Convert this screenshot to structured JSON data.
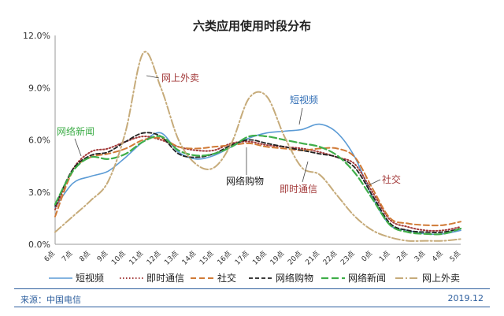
{
  "chart_data": {
    "type": "line",
    "title": "六类应用使用时段分布",
    "categories": [
      "6点",
      "7点",
      "8点",
      "9点",
      "10点",
      "11点",
      "12点",
      "13点",
      "14点",
      "15点",
      "16点",
      "17点",
      "18点",
      "19点",
      "20点",
      "21点",
      "22点",
      "23点",
      "0点",
      "1点",
      "2点",
      "3点",
      "4点",
      "5点"
    ],
    "y_ticks": [
      "0.0%",
      "3.0%",
      "6.0%",
      "9.0%",
      "12.0%"
    ],
    "ylim": [
      0,
      12
    ],
    "grid": false,
    "legend_position": "bottom",
    "series": [
      {
        "name": "短视频",
        "color": "#5b9bd5",
        "dash": "",
        "width": 1.6,
        "values": [
          2.1,
          3.5,
          3.9,
          4.2,
          5.0,
          5.9,
          6.4,
          5.3,
          4.9,
          5.1,
          5.6,
          6.1,
          6.4,
          6.5,
          6.6,
          6.9,
          6.4,
          5.0,
          2.7,
          1.1,
          0.8,
          0.6,
          0.6,
          0.8
        ]
      },
      {
        "name": "即时通信",
        "color": "#a33a3a",
        "dash": "1.5 2.5",
        "width": 2,
        "values": [
          2.0,
          4.3,
          5.3,
          5.5,
          5.9,
          6.2,
          6.0,
          5.6,
          5.4,
          5.4,
          5.8,
          5.9,
          5.7,
          5.6,
          5.5,
          5.3,
          5.0,
          4.6,
          3.0,
          1.4,
          1.0,
          0.8,
          0.8,
          1.0
        ]
      },
      {
        "name": "社交",
        "color": "#d07a36",
        "dash": "7 4",
        "width": 2,
        "values": [
          1.6,
          4.2,
          5.0,
          5.2,
          5.5,
          6.0,
          6.1,
          5.6,
          5.5,
          5.6,
          5.7,
          5.8,
          5.6,
          5.5,
          5.4,
          5.5,
          5.5,
          5.0,
          3.2,
          1.5,
          1.2,
          1.1,
          1.1,
          1.3
        ]
      },
      {
        "name": "网络购物",
        "color": "#222222",
        "dash": "5 3",
        "width": 1.8,
        "values": [
          2.2,
          4.3,
          5.1,
          5.3,
          5.9,
          6.4,
          6.2,
          5.2,
          5.0,
          5.2,
          5.7,
          6.0,
          5.8,
          5.6,
          5.4,
          5.2,
          5.0,
          4.4,
          2.8,
          1.2,
          0.8,
          0.7,
          0.7,
          0.9
        ]
      },
      {
        "name": "网络新闻",
        "color": "#3fae49",
        "dash": "9 4",
        "width": 2.2,
        "values": [
          2.3,
          4.2,
          5.0,
          4.9,
          5.2,
          5.9,
          6.2,
          5.4,
          5.1,
          5.2,
          5.6,
          6.2,
          6.2,
          6.0,
          5.8,
          5.6,
          5.1,
          4.1,
          2.6,
          1.1,
          0.7,
          0.6,
          0.6,
          0.9
        ]
      },
      {
        "name": "网上外卖",
        "color": "#c6ab7a",
        "dash": "10 3 2 3",
        "width": 2,
        "values": [
          0.7,
          1.6,
          2.5,
          3.6,
          6.5,
          11.0,
          9.0,
          6.0,
          4.6,
          4.4,
          5.8,
          8.4,
          8.5,
          6.2,
          4.4,
          4.0,
          2.8,
          1.6,
          0.8,
          0.4,
          0.2,
          0.2,
          0.2,
          0.3
        ]
      }
    ],
    "annotations": [
      {
        "text": "网上外卖",
        "color": "#a33a3a"
      },
      {
        "text": "网络新闻",
        "color": "#3fae49"
      },
      {
        "text": "短视频",
        "color": "#2f6db5"
      },
      {
        "text": "网络购物",
        "color": "#222222"
      },
      {
        "text": "即时通信",
        "color": "#a33a3a"
      },
      {
        "text": "社交",
        "color": "#a33a3a"
      }
    ]
  },
  "footer": {
    "source": "来源：中国电信",
    "date": "2019.12"
  }
}
